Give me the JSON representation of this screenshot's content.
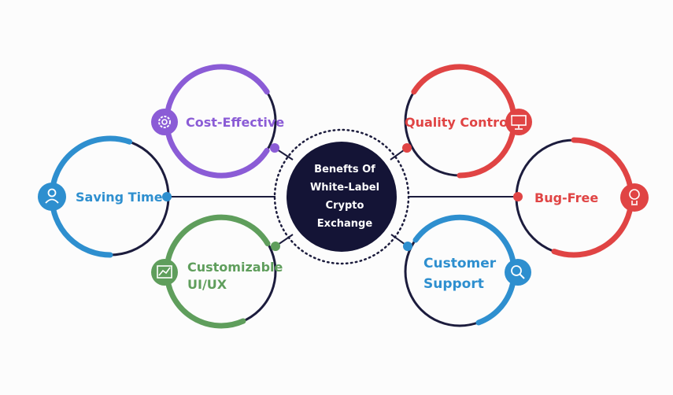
{
  "center": {
    "lines": [
      "Benefts Of",
      "White-Label",
      "Crypto",
      "Exchange"
    ]
  },
  "colors": {
    "purple": "#8b5cd6",
    "blue": "#2e8fcf",
    "green": "#5f9e5c",
    "red": "#e04444",
    "navy": "#141436",
    "ring": "#1c1c3d"
  },
  "items": [
    {
      "lines": [
        "Cost-Effective"
      ],
      "icon": "gear-icon",
      "color": "#8b5cd6"
    },
    {
      "lines": [
        "Saving Time"
      ],
      "icon": "user-icon",
      "color": "#2e8fcf"
    },
    {
      "lines": [
        "Customizable",
        "UI/UX"
      ],
      "icon": "chart-trend-icon",
      "color": "#5f9e5c"
    },
    {
      "lines": [
        "Quality Control"
      ],
      "icon": "monitor-icon",
      "color": "#e04444"
    },
    {
      "lines": [
        "Bug-Free"
      ],
      "icon": "lightbulb-icon",
      "color": "#e04444"
    },
    {
      "lines": [
        "Customer",
        "Support"
      ],
      "icon": "search-icon",
      "color": "#2e8fcf"
    }
  ]
}
